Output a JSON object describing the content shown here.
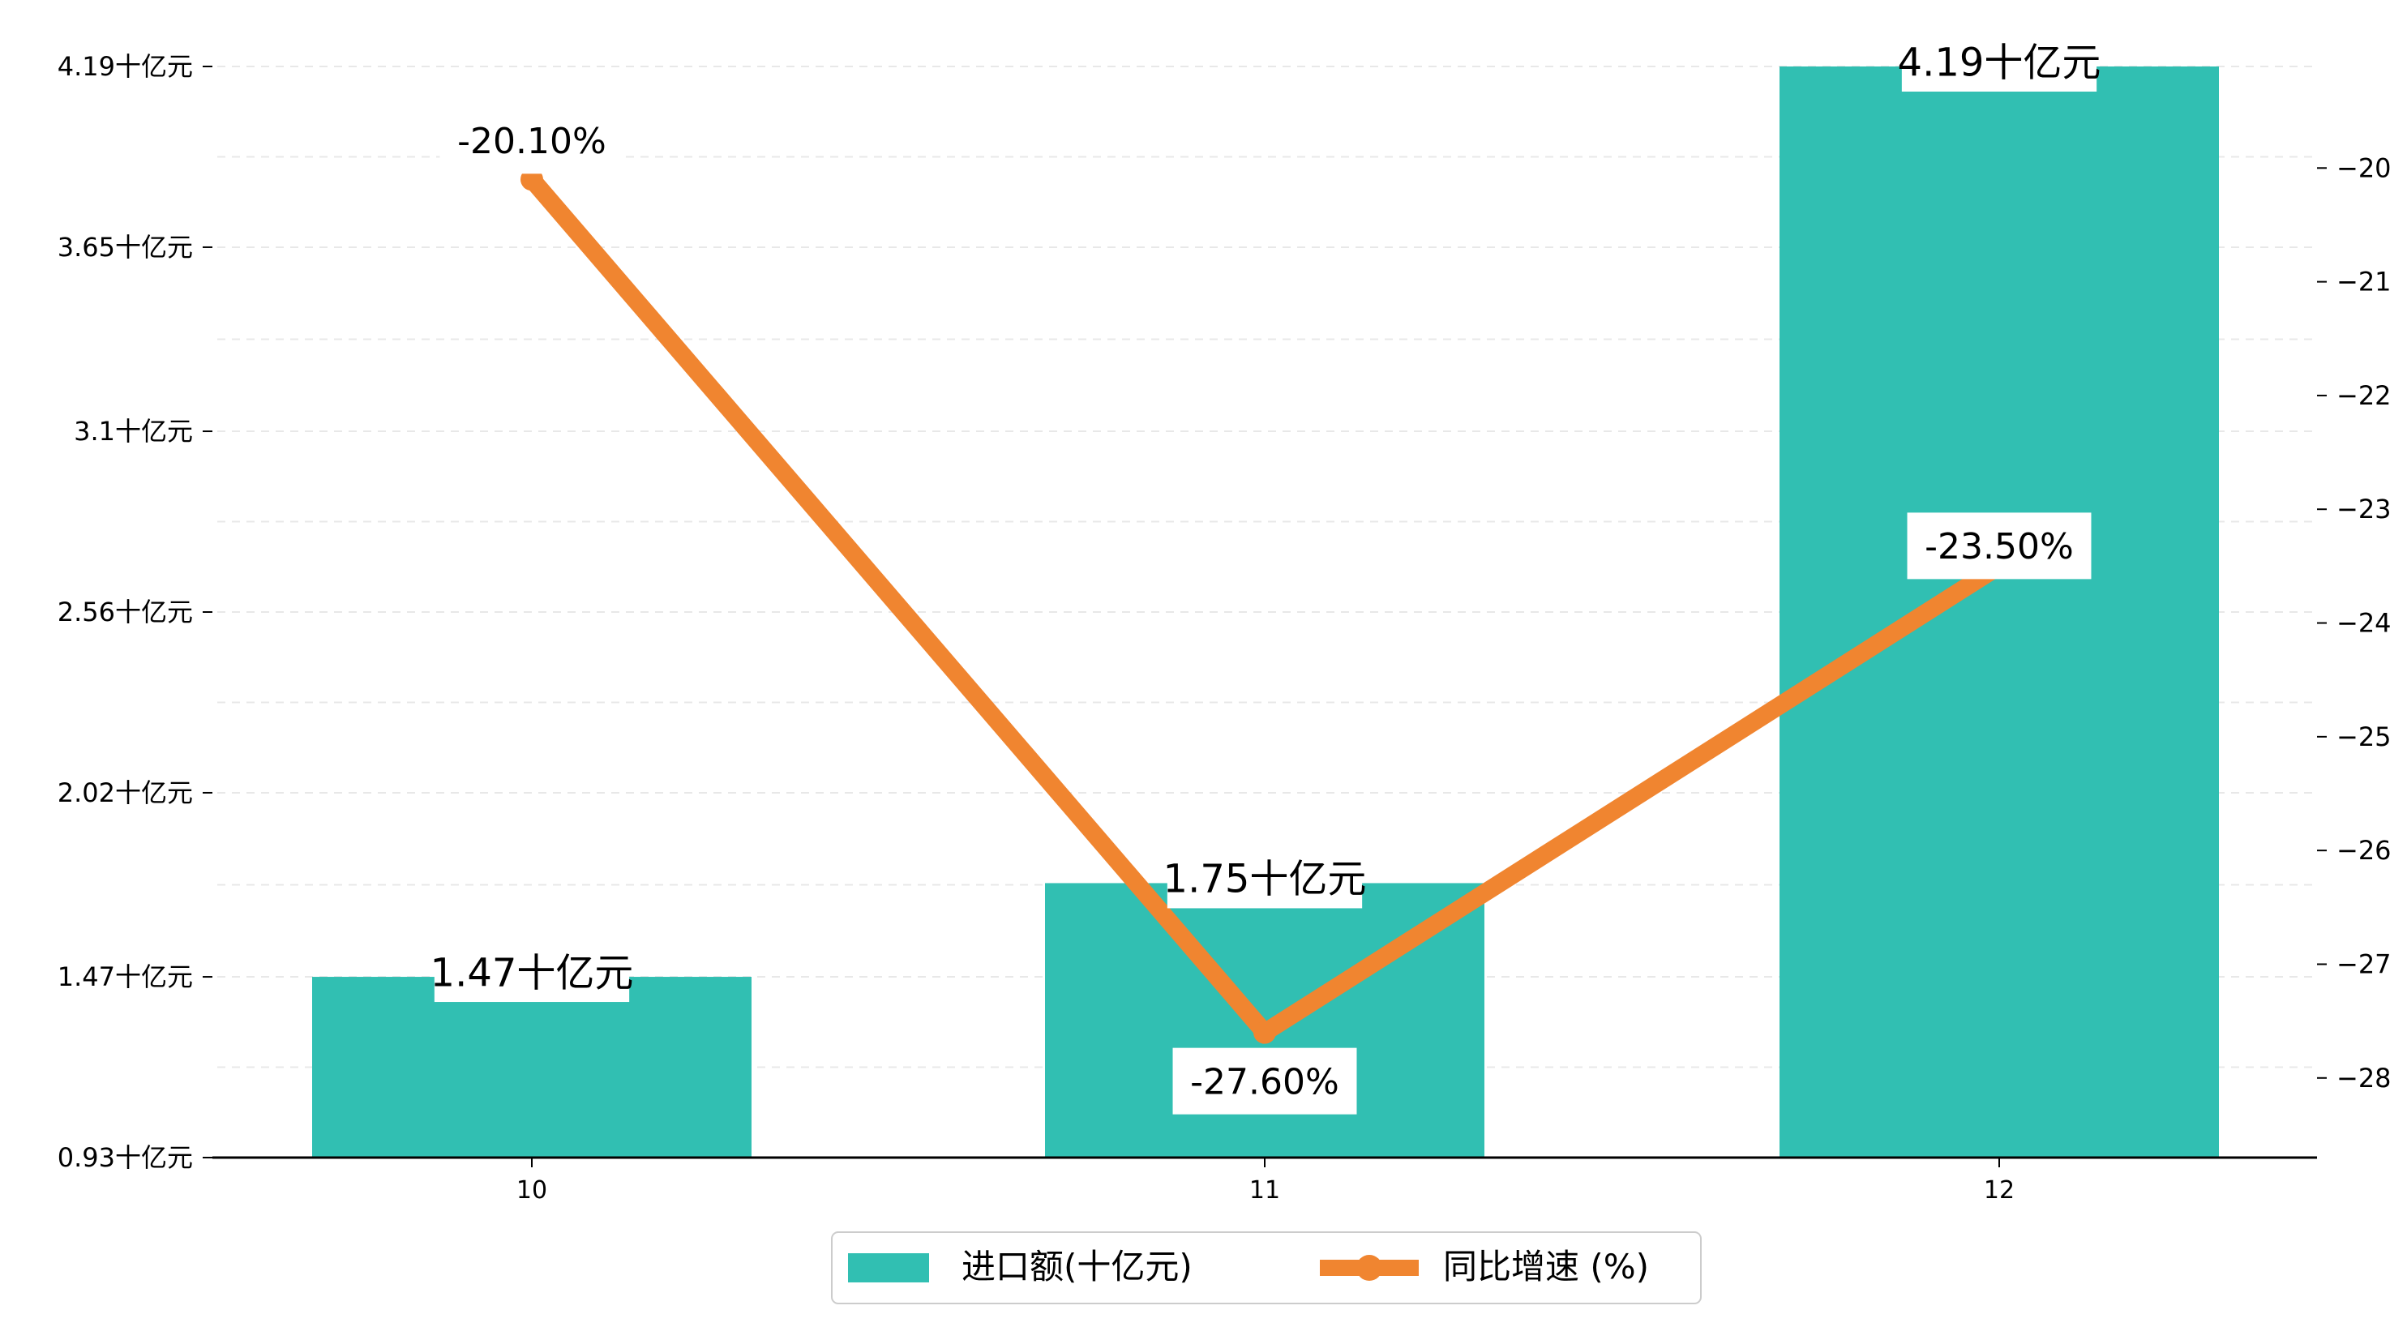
{
  "chart_data": {
    "type": "bar",
    "categories": [
      "10",
      "11",
      "12"
    ],
    "series": [
      {
        "name": "进口额(十亿元)",
        "type": "bar",
        "axis": "left",
        "values": [
          1.47,
          1.75,
          4.19
        ],
        "value_labels": [
          "1.47十亿元",
          "1.75十亿元",
          "4.19十亿元"
        ],
        "color": "#31bfb2"
      },
      {
        "name": "同比增速 (%)",
        "type": "line",
        "axis": "right",
        "values": [
          -20.1,
          -27.6,
          -23.5
        ],
        "value_labels": [
          "-20.10%",
          "-27.60%",
          "-23.50%"
        ],
        "color": "#f08530"
      }
    ],
    "left_axis": {
      "ylim": [
        0.93,
        4.19
      ],
      "ticks": [
        0.93,
        1.47,
        2.02,
        2.56,
        3.1,
        3.65,
        4.19
      ],
      "tick_labels": [
        "0.93十亿元",
        "1.47十亿元",
        "2.02十亿元",
        "2.56十亿元",
        "3.1十亿元",
        "3.65十亿元",
        "4.19十亿元"
      ]
    },
    "right_axis": {
      "ylim": [
        -28.7,
        -19.1
      ],
      "ticks": [
        -28,
        -27,
        -26,
        -25,
        -24,
        -23,
        -22,
        -21,
        -20
      ],
      "tick_labels": [
        "−28",
        "−27",
        "−26",
        "−25",
        "−24",
        "−23",
        "−22",
        "−21",
        "−20"
      ]
    },
    "grid": "horizontal dashed",
    "legend": {
      "position": "bottom-center",
      "entries": [
        "进口额(十亿元)",
        "同比增速 (%)"
      ]
    },
    "xlabel": "",
    "ylabel": "",
    "title": ""
  }
}
